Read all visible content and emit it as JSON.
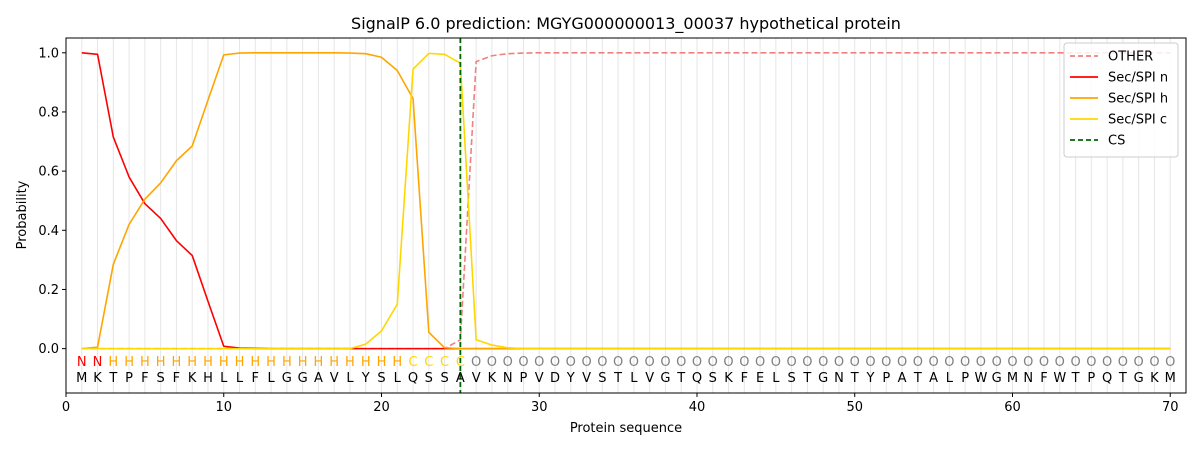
{
  "chart_data": {
    "type": "line",
    "title": "SignalP 6.0 prediction: MGYG000000013_00037 hypothetical protein",
    "xlabel": "Protein sequence",
    "ylabel": "Probability",
    "xlim": [
      0,
      71
    ],
    "ylim": [
      -0.15,
      1.05
    ],
    "xticks": [
      0,
      10,
      20,
      30,
      40,
      50,
      60,
      70
    ],
    "yticks": [
      0.0,
      0.2,
      0.4,
      0.6,
      0.8,
      1.0
    ],
    "xtick_labels": [
      "0",
      "10",
      "20",
      "30",
      "40",
      "50",
      "60",
      "70"
    ],
    "ytick_labels": [
      "0.0",
      "0.2",
      "0.4",
      "0.6",
      "0.8",
      "1.0"
    ],
    "legend_position": "top-right",
    "grid": "vertical lines at each residue",
    "sequence": [
      "M",
      "K",
      "T",
      "P",
      "F",
      "S",
      "F",
      "K",
      "H",
      "L",
      "L",
      "F",
      "L",
      "G",
      "G",
      "A",
      "V",
      "L",
      "Y",
      "S",
      "L",
      "Q",
      "S",
      "S",
      "A",
      "V",
      "K",
      "N",
      "P",
      "V",
      "D",
      "Y",
      "V",
      "S",
      "T",
      "L",
      "V",
      "G",
      "T",
      "Q",
      "S",
      "K",
      "F",
      "E",
      "L",
      "S",
      "T",
      "G",
      "N",
      "T",
      "Y",
      "P",
      "A",
      "T",
      "A",
      "L",
      "P",
      "W",
      "G",
      "M",
      "N",
      "F",
      "W",
      "T",
      "P",
      "Q",
      "T",
      "G",
      "K",
      "M"
    ],
    "region_labels": [
      "N",
      "N",
      "H",
      "H",
      "H",
      "H",
      "H",
      "H",
      "H",
      "H",
      "H",
      "H",
      "H",
      "H",
      "H",
      "H",
      "H",
      "H",
      "H",
      "H",
      "H",
      "C",
      "C",
      "C",
      "C",
      "O",
      "O",
      "O",
      "O",
      "O",
      "O",
      "O",
      "O",
      "O",
      "O",
      "O",
      "O",
      "O",
      "O",
      "O",
      "O",
      "O",
      "O",
      "O",
      "O",
      "O",
      "O",
      "O",
      "O",
      "O",
      "O",
      "O",
      "O",
      "O",
      "O",
      "O",
      "O",
      "O",
      "O",
      "O",
      "O",
      "O",
      "O",
      "O",
      "O",
      "O",
      "O",
      "O",
      "O",
      "O"
    ],
    "region_colors": {
      "N": "#ff0000",
      "H": "#ffa500",
      "C": "#ffd700",
      "O": "#808080"
    },
    "cleavage_site": 25,
    "series": [
      {
        "name": "OTHER",
        "color": "#f08080",
        "dash": "dashed",
        "values": [
          0,
          0,
          0,
          0,
          0,
          0,
          0,
          0,
          0,
          0,
          0,
          0,
          0,
          0,
          0,
          0,
          0,
          0,
          0,
          0,
          0,
          0,
          0,
          0,
          0.03,
          0.97,
          0.99,
          0.997,
          0.999,
          1,
          1,
          1,
          1,
          1,
          1,
          1,
          1,
          1,
          1,
          1,
          1,
          1,
          1,
          1,
          1,
          1,
          1,
          1,
          1,
          1,
          1,
          1,
          1,
          1,
          1,
          1,
          1,
          1,
          1,
          1,
          1,
          1,
          1,
          1,
          1,
          1,
          1,
          1,
          1,
          1
        ]
      },
      {
        "name": "Sec/SPI n",
        "color": "#ff0000",
        "dash": "solid",
        "values": [
          1.0,
          0.995,
          0.715,
          0.58,
          0.49,
          0.44,
          0.365,
          0.315,
          0.16,
          0.008,
          0.002,
          0.001,
          0,
          0,
          0,
          0,
          0,
          0,
          0,
          0,
          0,
          0,
          0,
          0,
          0,
          0,
          0,
          0,
          0,
          0,
          0,
          0,
          0,
          0,
          0,
          0,
          0,
          0,
          0,
          0,
          0,
          0,
          0,
          0,
          0,
          0,
          0,
          0,
          0,
          0,
          0,
          0,
          0,
          0,
          0,
          0,
          0,
          0,
          0,
          0,
          0,
          0,
          0,
          0,
          0,
          0,
          0,
          0,
          0,
          0
        ]
      },
      {
        "name": "Sec/SPI h",
        "color": "#ffa500",
        "dash": "solid",
        "values": [
          0,
          0.005,
          0.285,
          0.42,
          0.505,
          0.56,
          0.635,
          0.685,
          0.84,
          0.993,
          0.999,
          1.0,
          1.0,
          1.0,
          1.0,
          1.0,
          1.0,
          0.999,
          0.997,
          0.985,
          0.94,
          0.845,
          0.055,
          0.003,
          0,
          0,
          0,
          0,
          0,
          0,
          0,
          0,
          0,
          0,
          0,
          0,
          0,
          0,
          0,
          0,
          0,
          0,
          0,
          0,
          0,
          0,
          0,
          0,
          0,
          0,
          0,
          0,
          0,
          0,
          0,
          0,
          0,
          0,
          0,
          0,
          0,
          0,
          0,
          0,
          0,
          0,
          0,
          0,
          0,
          0
        ]
      },
      {
        "name": "Sec/SPI c",
        "color": "#ffd700",
        "dash": "solid",
        "values": [
          0,
          0,
          0,
          0,
          0,
          0,
          0,
          0,
          0,
          0,
          0,
          0,
          0,
          0,
          0,
          0,
          0,
          0,
          0.015,
          0.06,
          0.15,
          0.945,
          0.998,
          0.995,
          0.965,
          0.03,
          0.012,
          0.003,
          0,
          0,
          0,
          0,
          0,
          0,
          0,
          0,
          0,
          0,
          0,
          0,
          0,
          0,
          0,
          0,
          0,
          0,
          0,
          0,
          0,
          0,
          0,
          0,
          0,
          0,
          0,
          0,
          0,
          0,
          0,
          0,
          0,
          0,
          0,
          0,
          0,
          0,
          0,
          0,
          0,
          0
        ]
      }
    ],
    "legend": [
      {
        "name": "OTHER",
        "color": "#f08080",
        "dash": "dashed"
      },
      {
        "name": "Sec/SPI n",
        "color": "#ff0000",
        "dash": "solid"
      },
      {
        "name": "Sec/SPI h",
        "color": "#ffa500",
        "dash": "solid"
      },
      {
        "name": "Sec/SPI c",
        "color": "#ffd700",
        "dash": "solid"
      },
      {
        "name": "CS",
        "color": "#006400",
        "dash": "dashed"
      }
    ]
  }
}
